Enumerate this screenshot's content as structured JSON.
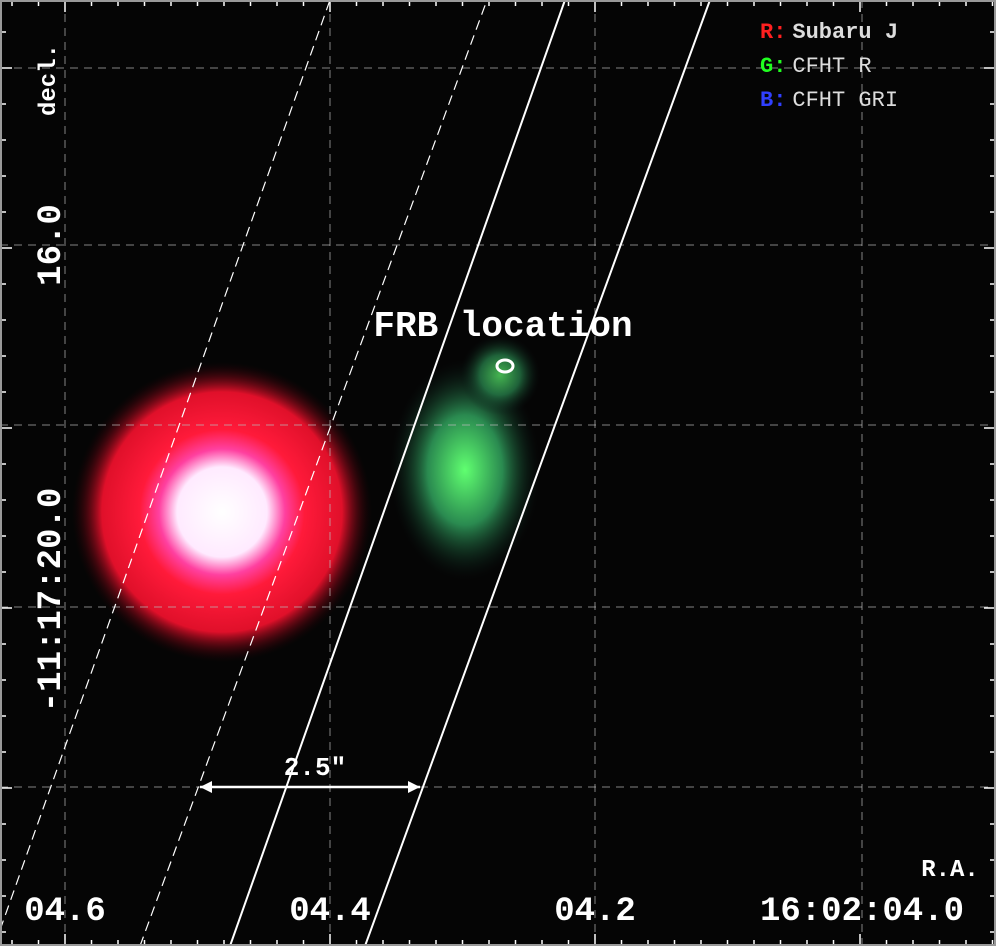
{
  "axes": {
    "y_label": "decl.",
    "x_label": "R.A.",
    "x_ticks": [
      "04.6",
      "04.4",
      "04.2",
      "16:02:04.0"
    ],
    "y_ticks": [
      "16.0",
      "-11:17:20.0"
    ]
  },
  "legend": [
    {
      "channel": "R:",
      "label": "Subaru J"
    },
    {
      "channel": "G:",
      "label": "CFHT R"
    },
    {
      "channel": "B:",
      "label": "CFHT GRI"
    }
  ],
  "annotations": {
    "frb": "FRB location",
    "scale": "2.5\""
  }
}
